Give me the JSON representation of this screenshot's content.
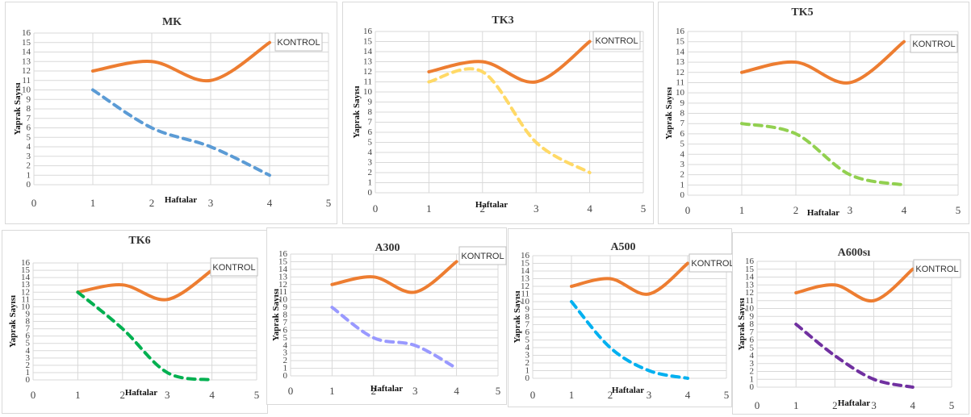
{
  "chart_data": [
    {
      "type": "line",
      "title": "MK",
      "xlabel": "Haftalar",
      "ylabel": "Yaprak Sayısı",
      "xlim": [
        0,
        5
      ],
      "ylim": [
        0,
        16
      ],
      "x_ticks": [
        0,
        1,
        2,
        3,
        4,
        5
      ],
      "y_ticks": [
        0,
        1,
        2,
        3,
        4,
        5,
        6,
        7,
        8,
        9,
        10,
        11,
        12,
        13,
        14,
        15,
        16
      ],
      "legend": "top-right",
      "grid": true,
      "series": [
        {
          "name": "KONTROL",
          "color": "#ED7D31",
          "style": "solid",
          "x": [
            1,
            2,
            3,
            4
          ],
          "y": [
            12,
            13,
            11,
            15
          ]
        },
        {
          "color": "#5B9BD5",
          "style": "dashed",
          "x": [
            1,
            2,
            3,
            4
          ],
          "y": [
            10,
            6,
            4,
            1
          ]
        }
      ]
    },
    {
      "type": "line",
      "title": "TK3",
      "xlabel": "Haftalar",
      "ylabel": "Yaprak Sayısı",
      "xlim": [
        0,
        5
      ],
      "ylim": [
        0,
        16
      ],
      "x_ticks": [
        0,
        1,
        2,
        3,
        4,
        5
      ],
      "y_ticks": [
        0,
        1,
        2,
        3,
        4,
        5,
        6,
        7,
        8,
        9,
        10,
        11,
        12,
        13,
        14,
        15,
        16
      ],
      "legend": "top-right",
      "grid": true,
      "series": [
        {
          "name": "KONTROL",
          "color": "#ED7D31",
          "style": "solid",
          "x": [
            1,
            2,
            3,
            4
          ],
          "y": [
            12,
            13,
            11,
            15
          ]
        },
        {
          "color": "#FFD966",
          "style": "dashed",
          "x": [
            1,
            2,
            3,
            4
          ],
          "y": [
            11,
            12,
            5,
            2
          ]
        }
      ]
    },
    {
      "type": "line",
      "title": "TK5",
      "xlabel": "Haftalar",
      "ylabel": "Yaprak Sayısı",
      "xlim": [
        0,
        5
      ],
      "ylim": [
        0,
        16
      ],
      "x_ticks": [
        0,
        1,
        2,
        3,
        4,
        5
      ],
      "y_ticks": [
        0,
        1,
        2,
        3,
        4,
        5,
        6,
        7,
        8,
        9,
        10,
        11,
        12,
        13,
        14,
        15,
        16
      ],
      "legend": "top-right",
      "grid": true,
      "series": [
        {
          "name": "KONTROL",
          "color": "#ED7D31",
          "style": "solid",
          "x": [
            1,
            2,
            3,
            4
          ],
          "y": [
            12,
            13,
            11,
            15
          ]
        },
        {
          "color": "#92D050",
          "style": "dashed",
          "x": [
            1,
            2,
            3,
            4
          ],
          "y": [
            7,
            6,
            2,
            1
          ]
        }
      ]
    },
    {
      "type": "line",
      "title": "TK6",
      "xlabel": "Haftalar",
      "ylabel": "Yaprak Sayısı",
      "xlim": [
        0,
        5
      ],
      "ylim": [
        0,
        16
      ],
      "x_ticks": [
        0,
        1,
        2,
        3,
        4,
        5
      ],
      "y_ticks": [
        0,
        1,
        2,
        3,
        4,
        5,
        6,
        7,
        8,
        9,
        10,
        11,
        12,
        13,
        14,
        15,
        16
      ],
      "legend": "top-right",
      "grid": true,
      "series": [
        {
          "name": "KONTROL",
          "color": "#ED7D31",
          "style": "solid",
          "x": [
            1,
            2,
            3,
            4
          ],
          "y": [
            12,
            13,
            11,
            15
          ]
        },
        {
          "color": "#00B050",
          "style": "dashed",
          "x": [
            1,
            2,
            3,
            4
          ],
          "y": [
            12,
            7,
            1,
            0
          ]
        }
      ]
    },
    {
      "type": "line",
      "title": "A300",
      "xlabel": "Haftalar",
      "ylabel": "Yaprak Sayısı",
      "xlim": [
        0,
        5
      ],
      "ylim": [
        0,
        16
      ],
      "x_ticks": [
        0,
        1,
        2,
        3,
        4,
        5
      ],
      "y_ticks": [
        0,
        1,
        2,
        3,
        4,
        5,
        6,
        7,
        8,
        9,
        10,
        11,
        12,
        13,
        14,
        15,
        16
      ],
      "legend": "top-right",
      "grid": true,
      "series": [
        {
          "name": "KONTROL",
          "color": "#ED7D31",
          "style": "solid",
          "x": [
            1,
            2,
            3,
            4
          ],
          "y": [
            12,
            13,
            11,
            15
          ]
        },
        {
          "color": "#9999FF",
          "style": "dashed",
          "x": [
            1,
            2,
            3,
            4
          ],
          "y": [
            9,
            5,
            4,
            1
          ]
        }
      ]
    },
    {
      "type": "line",
      "title": "A500",
      "xlabel": "Haftalar",
      "ylabel": "Yaprak Sayısı",
      "xlim": [
        0,
        5
      ],
      "ylim": [
        0,
        16
      ],
      "x_ticks": [
        0,
        1,
        2,
        3,
        4,
        5
      ],
      "y_ticks": [
        0,
        1,
        2,
        3,
        4,
        5,
        6,
        7,
        8,
        9,
        10,
        11,
        12,
        13,
        14,
        15,
        16
      ],
      "legend": "top-right",
      "grid": true,
      "series": [
        {
          "name": "KONTROL",
          "color": "#ED7D31",
          "style": "solid",
          "x": [
            1,
            2,
            3,
            4
          ],
          "y": [
            12,
            13,
            11,
            15
          ]
        },
        {
          "color": "#00B0F0",
          "style": "dashed",
          "x": [
            1,
            2,
            3,
            4
          ],
          "y": [
            10,
            4,
            1,
            0
          ]
        }
      ]
    },
    {
      "type": "line",
      "title": "A600sı",
      "xlabel": "Haftalar",
      "ylabel": "Yaprak Sayısı",
      "xlim": [
        0,
        5
      ],
      "ylim": [
        0,
        16
      ],
      "x_ticks": [
        0,
        1,
        2,
        3,
        4,
        5
      ],
      "y_ticks": [
        0,
        1,
        2,
        3,
        4,
        5,
        6,
        7,
        8,
        9,
        10,
        11,
        12,
        13,
        14,
        15,
        16
      ],
      "legend": "top-right",
      "grid": true,
      "series": [
        {
          "name": "KONTROL",
          "color": "#ED7D31",
          "style": "solid",
          "x": [
            1,
            2,
            3,
            4
          ],
          "y": [
            12,
            13,
            11,
            15
          ]
        },
        {
          "color": "#7030A0",
          "style": "dashed",
          "x": [
            1,
            2,
            3,
            4
          ],
          "y": [
            8,
            4,
            1,
            0
          ]
        }
      ]
    }
  ]
}
